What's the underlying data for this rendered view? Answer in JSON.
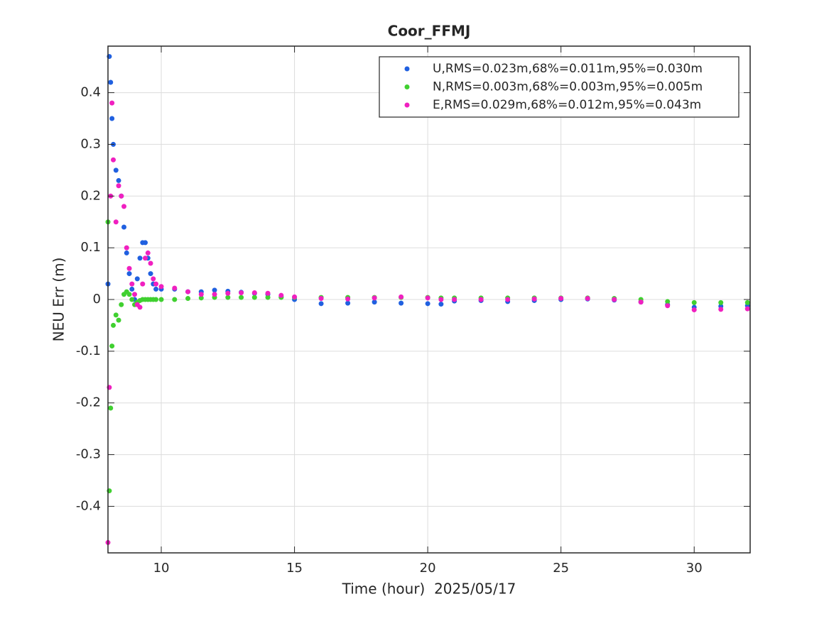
{
  "chart_data": {
    "type": "scatter",
    "title": "Coor_FFMJ",
    "xlabel": "Time (hour)  2025/05/17",
    "ylabel": "NEU Err (m)",
    "x": [
      8.0,
      8.05,
      8.1,
      8.15,
      8.2,
      8.3,
      8.4,
      8.5,
      8.6,
      8.7,
      8.8,
      8.9,
      9.0,
      9.1,
      9.2,
      9.3,
      9.4,
      9.5,
      9.6,
      9.7,
      9.8,
      10.0,
      10.5,
      11,
      11.5,
      12,
      12.5,
      13,
      13.5,
      14,
      14.5,
      15,
      16,
      17,
      18,
      19,
      20,
      20.5,
      21,
      22,
      23,
      24,
      25,
      26,
      27,
      28,
      29,
      30,
      31,
      32
    ],
    "series": [
      {
        "name": "U,RMS=0.023m,68%=0.011m,95%=0.030m",
        "color": "#2060e0",
        "values": [
          0.03,
          0.47,
          0.42,
          0.35,
          0.3,
          0.25,
          0.23,
          0.2,
          0.14,
          0.09,
          0.05,
          0.02,
          0.0,
          0.04,
          0.08,
          0.11,
          0.11,
          0.08,
          0.05,
          0.03,
          0.02,
          0.02,
          0.02,
          0.015,
          0.015,
          0.018,
          0.016,
          0.014,
          0.012,
          0.01,
          0.005,
          0.0,
          -0.008,
          -0.007,
          -0.005,
          -0.007,
          -0.008,
          -0.009,
          -0.003,
          -0.002,
          -0.004,
          -0.002,
          0.0,
          0.001,
          -0.001,
          -0.005,
          -0.01,
          -0.015,
          -0.013,
          -0.012
        ]
      },
      {
        "name": "N,RMS=0.003m,68%=0.003m,95%=0.005m",
        "color": "#40d030",
        "values": [
          0.15,
          -0.37,
          -0.21,
          -0.09,
          -0.05,
          -0.03,
          -0.04,
          -0.01,
          0.01,
          0.015,
          0.01,
          0.0,
          -0.01,
          -0.005,
          -0.002,
          0.0,
          0.0,
          0.0,
          0.0,
          0.0,
          0.0,
          0.0,
          0.0,
          0.002,
          0.003,
          0.004,
          0.004,
          0.004,
          0.004,
          0.004,
          0.004,
          0.004,
          0.004,
          0.004,
          0.004,
          0.004,
          0.004,
          0.003,
          0.003,
          0.003,
          0.003,
          0.003,
          0.003,
          0.003,
          0.002,
          0.0,
          -0.004,
          -0.006,
          -0.006,
          -0.006
        ]
      },
      {
        "name": "E,RMS=0.029m,68%=0.012m,95%=0.043m",
        "color": "#f020c0",
        "values": [
          -0.47,
          -0.17,
          0.2,
          0.38,
          0.27,
          0.15,
          0.22,
          0.2,
          0.18,
          0.1,
          0.06,
          0.03,
          0.01,
          -0.01,
          -0.015,
          0.03,
          0.08,
          0.09,
          0.07,
          0.04,
          0.03,
          0.025,
          0.022,
          0.015,
          0.01,
          0.01,
          0.012,
          0.013,
          0.013,
          0.012,
          0.008,
          0.005,
          0.002,
          0.001,
          0.003,
          0.005,
          0.003,
          0.0,
          0.0,
          0.0,
          0.0,
          0.001,
          0.002,
          0.002,
          0.0,
          -0.005,
          -0.012,
          -0.02,
          -0.019,
          -0.018
        ]
      }
    ],
    "xlim": [
      8,
      32.1
    ],
    "ylim": [
      -0.49,
      0.49
    ],
    "xticks": [
      10,
      15,
      20,
      25,
      30
    ],
    "yticks": [
      -0.4,
      -0.3,
      -0.2,
      -0.1,
      0,
      0.1,
      0.2,
      0.3,
      0.4
    ],
    "grid": true,
    "legend": "upper right"
  }
}
